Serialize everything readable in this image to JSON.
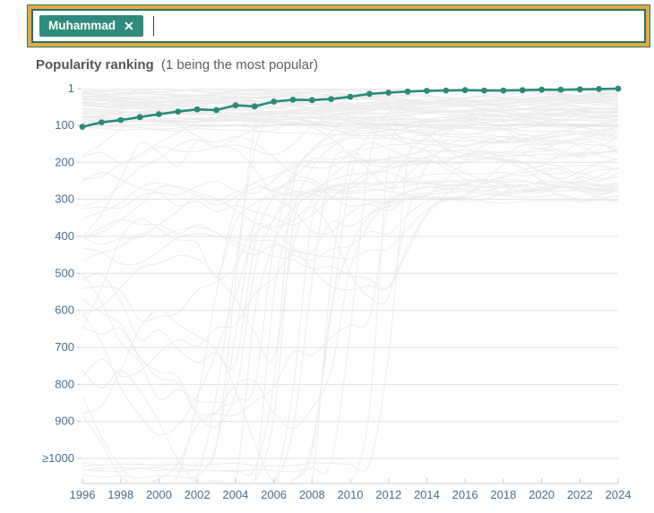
{
  "search": {
    "chip_label": "Muhammad",
    "remove_icon": "✕",
    "value": "",
    "placeholder": ""
  },
  "chart": {
    "title": "Popularity ranking",
    "subtitle": "(1 being the most popular)"
  },
  "chart_data": {
    "type": "line",
    "title": "Popularity ranking (1 being the most popular)",
    "x": [
      1996,
      1997,
      1998,
      1999,
      2000,
      2001,
      2002,
      2003,
      2004,
      2005,
      2006,
      2007,
      2008,
      2009,
      2010,
      2011,
      2012,
      2013,
      2014,
      2015,
      2016,
      2017,
      2018,
      2019,
      2020,
      2021,
      2022,
      2023,
      2024
    ],
    "series": [
      {
        "name": "Muhammad",
        "values": [
          104,
          92,
          86,
          78,
          70,
          63,
          57,
          59,
          46,
          49,
          36,
          31,
          32,
          29,
          23,
          15,
          12,
          9,
          7,
          6,
          5,
          6,
          6,
          5,
          4,
          4,
          3,
          2,
          1
        ]
      }
    ],
    "y_axis": {
      "inverted": true,
      "range": [
        1,
        1000
      ],
      "ticks": [
        {
          "label": "1",
          "rank": 1
        },
        {
          "label": "100",
          "rank": 100
        },
        {
          "label": "200",
          "rank": 200
        },
        {
          "label": "300",
          "rank": 300
        },
        {
          "label": "400",
          "rank": 400
        },
        {
          "label": "500",
          "rank": 500
        },
        {
          "label": "600",
          "rank": 600
        },
        {
          "label": "700",
          "rank": 700
        },
        {
          "label": "800",
          "rank": 800
        },
        {
          "label": "900",
          "rank": 900
        },
        {
          "label": "≥1000",
          "rank": 1000
        }
      ]
    },
    "x_ticks": [
      1996,
      1998,
      2000,
      2002,
      2004,
      2006,
      2008,
      2010,
      2012,
      2014,
      2016,
      2018,
      2020,
      2022,
      2024
    ],
    "grid": true,
    "legend": "none",
    "colors": {
      "series": "#2a8a7c",
      "grid": "#e0e0e0",
      "axis_line": "#cccccc",
      "axis_text": "#4a6f8e",
      "background_lines": "#ececec",
      "chip_bg": "#2f8b7d",
      "focus_ring": "#eaa83f"
    },
    "background": {
      "description": "decorative light-grey ranking curves of all other names (unlabeled)",
      "approx_count": 85
    }
  }
}
